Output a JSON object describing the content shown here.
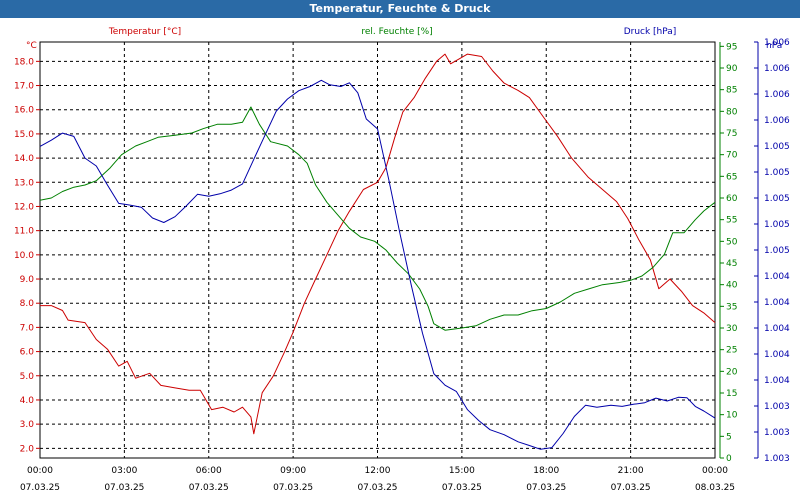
{
  "window": {
    "title": "Temperatur, Feuchte & Druck"
  },
  "chart_data": {
    "type": "line",
    "title": "Temperatur, Feuchte & Druck",
    "grid": true,
    "x": {
      "range_hours": [
        0,
        24
      ],
      "ticks": [
        {
          "time": "00:00",
          "date": "07.03.25"
        },
        {
          "time": "03:00",
          "date": "07.03.25"
        },
        {
          "time": "06:00",
          "date": "07.03.25"
        },
        {
          "time": "09:00",
          "date": "07.03.25"
        },
        {
          "time": "12:00",
          "date": "07.03.25"
        },
        {
          "time": "15:00",
          "date": "07.03.25"
        },
        {
          "time": "18:00",
          "date": "07.03.25"
        },
        {
          "time": "21:00",
          "date": "07.03.25"
        },
        {
          "time": "00:00",
          "date": "08.03.25"
        }
      ]
    },
    "axes": {
      "temperature": {
        "label": "Temperatur [°C]",
        "unit": "°C",
        "color": "#cc0000",
        "side": "left",
        "range": [
          1.6,
          18.8
        ],
        "ticks": [
          "2.0",
          "3.0",
          "4.0",
          "5.0",
          "6.0",
          "7.0",
          "8.0",
          "9.0",
          "10.0",
          "11.0",
          "12.0",
          "13.0",
          "14.0",
          "15.0",
          "16.0",
          "17.0",
          "18.0"
        ]
      },
      "humidity": {
        "label": "rel. Feuchte [%]",
        "unit": "%",
        "color": "#008000",
        "side": "right",
        "range": [
          0,
          96
        ],
        "ticks": [
          "0",
          "5",
          "10",
          "15",
          "20",
          "25",
          "30",
          "35",
          "40",
          "45",
          "50",
          "55",
          "60",
          "65",
          "70",
          "75",
          "80",
          "85",
          "90",
          "95"
        ]
      },
      "pressure": {
        "label": "Druck [hPa]",
        "unit": "hPa",
        "color": "#0000aa",
        "side": "right",
        "range": [
          0,
          1
        ],
        "ticks": [
          "1.003",
          "1.003",
          "1.003",
          "1.004",
          "1.004",
          "1.004",
          "1.004",
          "1.004",
          "1.005",
          "1.005",
          "1.005",
          "1.005",
          "1.005",
          "1.006",
          "1.006",
          "1.006",
          "1.006"
        ]
      }
    },
    "series": [
      {
        "name": "Temperatur [°C]",
        "axis": "temperature",
        "color": "#cc0000",
        "points": [
          [
            0,
            7.9
          ],
          [
            0.4,
            7.9
          ],
          [
            0.8,
            7.7
          ],
          [
            1.0,
            7.3
          ],
          [
            1.6,
            7.2
          ],
          [
            2.0,
            6.5
          ],
          [
            2.4,
            6.1
          ],
          [
            2.8,
            5.4
          ],
          [
            3.1,
            5.6
          ],
          [
            3.4,
            4.9
          ],
          [
            3.9,
            5.1
          ],
          [
            4.3,
            4.6
          ],
          [
            4.8,
            4.5
          ],
          [
            5.3,
            4.4
          ],
          [
            5.7,
            4.4
          ],
          [
            6.1,
            3.6
          ],
          [
            6.5,
            3.7
          ],
          [
            6.9,
            3.5
          ],
          [
            7.2,
            3.7
          ],
          [
            7.5,
            3.3
          ],
          [
            7.6,
            2.6
          ],
          [
            7.9,
            4.3
          ],
          [
            8.3,
            5.0
          ],
          [
            8.7,
            6.0
          ],
          [
            9.0,
            6.8
          ],
          [
            9.4,
            8.0
          ],
          [
            9.8,
            9.0
          ],
          [
            10.2,
            10.0
          ],
          [
            10.6,
            11.0
          ],
          [
            11.0,
            11.8
          ],
          [
            11.5,
            12.7
          ],
          [
            12.0,
            13.0
          ],
          [
            12.3,
            13.6
          ],
          [
            12.6,
            14.8
          ],
          [
            12.9,
            15.9
          ],
          [
            13.3,
            16.5
          ],
          [
            13.7,
            17.3
          ],
          [
            14.1,
            18.0
          ],
          [
            14.4,
            18.3
          ],
          [
            14.6,
            17.9
          ],
          [
            14.9,
            18.1
          ],
          [
            15.2,
            18.3
          ],
          [
            15.7,
            18.2
          ],
          [
            16.1,
            17.6
          ],
          [
            16.5,
            17.1
          ],
          [
            17.0,
            16.8
          ],
          [
            17.4,
            16.5
          ],
          [
            17.9,
            15.7
          ],
          [
            18.4,
            14.9
          ],
          [
            18.9,
            14.0
          ],
          [
            19.5,
            13.2
          ],
          [
            20.0,
            12.7
          ],
          [
            20.5,
            12.2
          ],
          [
            20.9,
            11.5
          ],
          [
            21.3,
            10.6
          ],
          [
            21.7,
            9.8
          ],
          [
            22.0,
            8.6
          ],
          [
            22.4,
            9.0
          ],
          [
            22.8,
            8.5
          ],
          [
            23.2,
            7.9
          ],
          [
            23.6,
            7.6
          ],
          [
            24.0,
            7.2
          ]
        ]
      },
      {
        "name": "rel. Feuchte [%]",
        "axis": "humidity",
        "color": "#008000",
        "points": [
          [
            0,
            59.5
          ],
          [
            0.4,
            60
          ],
          [
            0.8,
            61.5
          ],
          [
            1.2,
            62.5
          ],
          [
            1.6,
            63
          ],
          [
            2.0,
            64
          ],
          [
            2.5,
            67
          ],
          [
            2.9,
            70
          ],
          [
            3.4,
            72
          ],
          [
            3.8,
            73
          ],
          [
            4.2,
            74
          ],
          [
            4.8,
            74.5
          ],
          [
            5.4,
            75
          ],
          [
            5.8,
            76
          ],
          [
            6.3,
            77
          ],
          [
            6.8,
            77
          ],
          [
            7.2,
            77.5
          ],
          [
            7.5,
            81
          ],
          [
            7.8,
            77
          ],
          [
            8.2,
            73
          ],
          [
            8.8,
            72
          ],
          [
            9.2,
            70
          ],
          [
            9.5,
            68
          ],
          [
            9.8,
            63
          ],
          [
            10.2,
            59
          ],
          [
            10.6,
            56
          ],
          [
            11.0,
            53
          ],
          [
            11.4,
            51
          ],
          [
            11.9,
            50
          ],
          [
            12.3,
            48
          ],
          [
            12.7,
            45
          ],
          [
            13.1,
            42.5
          ],
          [
            13.5,
            39
          ],
          [
            13.8,
            35
          ],
          [
            14.0,
            31
          ],
          [
            14.4,
            29.5
          ],
          [
            15.0,
            30
          ],
          [
            15.5,
            30.5
          ],
          [
            16.0,
            32
          ],
          [
            16.5,
            33
          ],
          [
            17.0,
            33
          ],
          [
            17.5,
            34
          ],
          [
            18.0,
            34.5
          ],
          [
            18.5,
            36
          ],
          [
            19.0,
            38
          ],
          [
            19.5,
            39
          ],
          [
            20.0,
            40
          ],
          [
            20.6,
            40.5
          ],
          [
            21.0,
            41
          ],
          [
            21.4,
            42
          ],
          [
            21.8,
            44
          ],
          [
            22.2,
            47
          ],
          [
            22.5,
            52
          ],
          [
            22.9,
            52
          ],
          [
            23.3,
            55
          ],
          [
            23.6,
            57
          ],
          [
            24.0,
            59
          ]
        ]
      },
      {
        "name": "Druck [hPa]",
        "axis": "pressure",
        "color": "#0000aa",
        "points": [
          [
            0,
            0.749
          ],
          [
            0.4,
            0.764
          ],
          [
            0.8,
            0.781
          ],
          [
            1.2,
            0.773
          ],
          [
            1.6,
            0.721
          ],
          [
            2.0,
            0.702
          ],
          [
            2.4,
            0.656
          ],
          [
            2.8,
            0.612
          ],
          [
            3.2,
            0.608
          ],
          [
            3.6,
            0.603
          ],
          [
            4.0,
            0.577
          ],
          [
            4.4,
            0.566
          ],
          [
            4.8,
            0.58
          ],
          [
            5.2,
            0.606
          ],
          [
            5.6,
            0.634
          ],
          [
            6.0,
            0.629
          ],
          [
            6.4,
            0.635
          ],
          [
            6.8,
            0.644
          ],
          [
            7.2,
            0.659
          ],
          [
            7.6,
            0.718
          ],
          [
            8.0,
            0.776
          ],
          [
            8.4,
            0.834
          ],
          [
            8.8,
            0.863
          ],
          [
            9.2,
            0.883
          ],
          [
            9.6,
            0.893
          ],
          [
            10.0,
            0.908
          ],
          [
            10.3,
            0.897
          ],
          [
            10.7,
            0.893
          ],
          [
            11.0,
            0.902
          ],
          [
            11.3,
            0.878
          ],
          [
            11.6,
            0.815
          ],
          [
            12.0,
            0.791
          ],
          [
            12.4,
            0.669
          ],
          [
            12.8,
            0.539
          ],
          [
            13.2,
            0.416
          ],
          [
            13.6,
            0.3
          ],
          [
            14.0,
            0.203
          ],
          [
            14.4,
            0.175
          ],
          [
            14.8,
            0.16
          ],
          [
            15.2,
            0.116
          ],
          [
            15.6,
            0.09
          ],
          [
            16.0,
            0.068
          ],
          [
            16.5,
            0.056
          ],
          [
            17.0,
            0.039
          ],
          [
            17.4,
            0.03
          ],
          [
            17.8,
            0.021
          ],
          [
            18.2,
            0.025
          ],
          [
            18.6,
            0.059
          ],
          [
            19.0,
            0.1
          ],
          [
            19.4,
            0.127
          ],
          [
            19.8,
            0.122
          ],
          [
            20.3,
            0.127
          ],
          [
            20.7,
            0.124
          ],
          [
            21.1,
            0.129
          ],
          [
            21.5,
            0.133
          ],
          [
            21.9,
            0.144
          ],
          [
            22.3,
            0.137
          ],
          [
            22.7,
            0.146
          ],
          [
            23.0,
            0.145
          ],
          [
            23.3,
            0.124
          ],
          [
            23.6,
            0.113
          ],
          [
            24.0,
            0.096
          ]
        ]
      }
    ]
  }
}
